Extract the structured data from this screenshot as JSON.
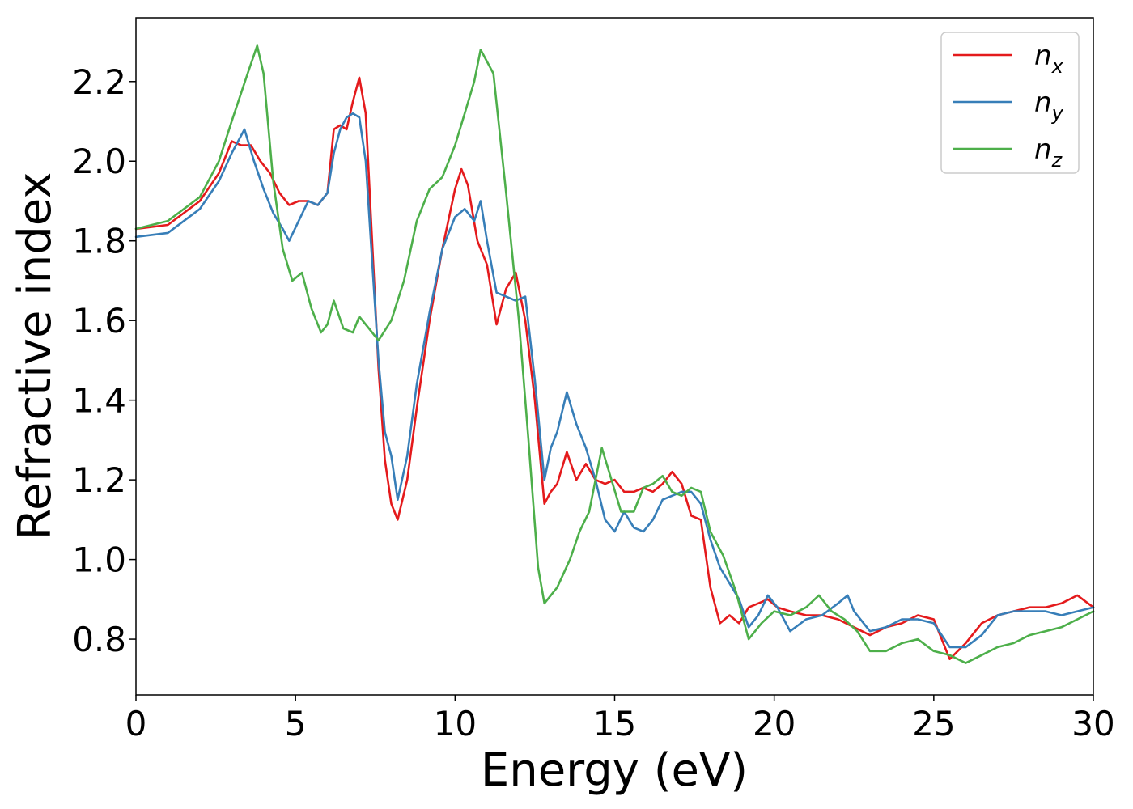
{
  "chart_data": {
    "type": "line",
    "title": "",
    "xlabel": "Energy (eV)",
    "ylabel": "Refractive index",
    "xlim": [
      0,
      30
    ],
    "ylim": [
      0.66,
      2.36
    ],
    "xticks": [
      0,
      5,
      10,
      15,
      20,
      25,
      30
    ],
    "xtick_labels": [
      "0",
      "5",
      "10",
      "15",
      "20",
      "25",
      "30"
    ],
    "yticks": [
      0.8,
      1.0,
      1.2,
      1.4,
      1.6,
      1.8,
      2.0,
      2.2
    ],
    "ytick_labels": [
      "0.8",
      "1.0",
      "1.2",
      "1.4",
      "1.6",
      "1.8",
      "2.0",
      "2.2"
    ],
    "grid": false,
    "legend_position": "top-right",
    "series": [
      {
        "name": "n",
        "subscript": "x",
        "color": "#e41a1c",
        "points": [
          [
            0,
            1.83
          ],
          [
            1,
            1.84
          ],
          [
            2,
            1.9
          ],
          [
            2.6,
            1.97
          ],
          [
            3.0,
            2.05
          ],
          [
            3.3,
            2.04
          ],
          [
            3.6,
            2.04
          ],
          [
            3.9,
            2.0
          ],
          [
            4.2,
            1.97
          ],
          [
            4.5,
            1.92
          ],
          [
            4.8,
            1.89
          ],
          [
            5.1,
            1.9
          ],
          [
            5.4,
            1.9
          ],
          [
            5.7,
            1.89
          ],
          [
            6.0,
            1.92
          ],
          [
            6.2,
            2.08
          ],
          [
            6.4,
            2.09
          ],
          [
            6.6,
            2.08
          ],
          [
            6.8,
            2.15
          ],
          [
            7.0,
            2.21
          ],
          [
            7.2,
            2.12
          ],
          [
            7.4,
            1.8
          ],
          [
            7.6,
            1.48
          ],
          [
            7.8,
            1.25
          ],
          [
            8.0,
            1.14
          ],
          [
            8.2,
            1.1
          ],
          [
            8.5,
            1.2
          ],
          [
            8.8,
            1.38
          ],
          [
            9.2,
            1.6
          ],
          [
            9.6,
            1.78
          ],
          [
            10.0,
            1.93
          ],
          [
            10.2,
            1.98
          ],
          [
            10.4,
            1.94
          ],
          [
            10.7,
            1.8
          ],
          [
            11.0,
            1.74
          ],
          [
            11.3,
            1.59
          ],
          [
            11.6,
            1.68
          ],
          [
            11.9,
            1.72
          ],
          [
            12.2,
            1.6
          ],
          [
            12.5,
            1.4
          ],
          [
            12.8,
            1.14
          ],
          [
            13.0,
            1.17
          ],
          [
            13.2,
            1.19
          ],
          [
            13.5,
            1.27
          ],
          [
            13.8,
            1.2
          ],
          [
            14.1,
            1.24
          ],
          [
            14.4,
            1.2
          ],
          [
            14.7,
            1.19
          ],
          [
            15.0,
            1.2
          ],
          [
            15.3,
            1.17
          ],
          [
            15.6,
            1.17
          ],
          [
            15.9,
            1.18
          ],
          [
            16.2,
            1.17
          ],
          [
            16.5,
            1.19
          ],
          [
            16.8,
            1.22
          ],
          [
            17.1,
            1.19
          ],
          [
            17.4,
            1.11
          ],
          [
            17.7,
            1.1
          ],
          [
            18.0,
            0.93
          ],
          [
            18.3,
            0.84
          ],
          [
            18.6,
            0.86
          ],
          [
            18.9,
            0.84
          ],
          [
            19.2,
            0.88
          ],
          [
            19.5,
            0.89
          ],
          [
            19.8,
            0.9
          ],
          [
            20.1,
            0.88
          ],
          [
            20.5,
            0.87
          ],
          [
            21.0,
            0.86
          ],
          [
            21.5,
            0.86
          ],
          [
            22.0,
            0.85
          ],
          [
            22.5,
            0.83
          ],
          [
            23.0,
            0.81
          ],
          [
            23.5,
            0.83
          ],
          [
            24.0,
            0.84
          ],
          [
            24.5,
            0.86
          ],
          [
            25.0,
            0.85
          ],
          [
            25.5,
            0.75
          ],
          [
            26.0,
            0.79
          ],
          [
            26.5,
            0.84
          ],
          [
            27.0,
            0.86
          ],
          [
            27.5,
            0.87
          ],
          [
            28.0,
            0.88
          ],
          [
            28.5,
            0.88
          ],
          [
            29.0,
            0.89
          ],
          [
            29.5,
            0.91
          ],
          [
            30,
            0.88
          ]
        ]
      },
      {
        "name": "n",
        "subscript": "y",
        "color": "#377eb8",
        "points": [
          [
            0,
            1.81
          ],
          [
            1,
            1.82
          ],
          [
            2,
            1.88
          ],
          [
            2.6,
            1.95
          ],
          [
            3.0,
            2.02
          ],
          [
            3.4,
            2.08
          ],
          [
            3.7,
            2.0
          ],
          [
            4.0,
            1.93
          ],
          [
            4.3,
            1.87
          ],
          [
            4.6,
            1.83
          ],
          [
            4.8,
            1.8
          ],
          [
            5.1,
            1.85
          ],
          [
            5.4,
            1.9
          ],
          [
            5.7,
            1.89
          ],
          [
            6.0,
            1.92
          ],
          [
            6.2,
            2.02
          ],
          [
            6.4,
            2.08
          ],
          [
            6.6,
            2.11
          ],
          [
            6.8,
            2.12
          ],
          [
            7.0,
            2.11
          ],
          [
            7.2,
            2.0
          ],
          [
            7.4,
            1.75
          ],
          [
            7.6,
            1.5
          ],
          [
            7.8,
            1.32
          ],
          [
            8.0,
            1.26
          ],
          [
            8.2,
            1.15
          ],
          [
            8.5,
            1.26
          ],
          [
            8.8,
            1.44
          ],
          [
            9.2,
            1.62
          ],
          [
            9.6,
            1.78
          ],
          [
            10.0,
            1.86
          ],
          [
            10.3,
            1.88
          ],
          [
            10.6,
            1.85
          ],
          [
            10.8,
            1.9
          ],
          [
            11.0,
            1.8
          ],
          [
            11.3,
            1.67
          ],
          [
            11.6,
            1.66
          ],
          [
            11.9,
            1.65
          ],
          [
            12.2,
            1.66
          ],
          [
            12.5,
            1.45
          ],
          [
            12.8,
            1.2
          ],
          [
            13.0,
            1.28
          ],
          [
            13.2,
            1.32
          ],
          [
            13.5,
            1.42
          ],
          [
            13.8,
            1.34
          ],
          [
            14.1,
            1.28
          ],
          [
            14.4,
            1.2
          ],
          [
            14.7,
            1.1
          ],
          [
            15.0,
            1.07
          ],
          [
            15.3,
            1.12
          ],
          [
            15.6,
            1.08
          ],
          [
            15.9,
            1.07
          ],
          [
            16.2,
            1.1
          ],
          [
            16.5,
            1.15
          ],
          [
            16.8,
            1.16
          ],
          [
            17.1,
            1.17
          ],
          [
            17.4,
            1.17
          ],
          [
            17.7,
            1.14
          ],
          [
            18.0,
            1.05
          ],
          [
            18.3,
            0.98
          ],
          [
            18.6,
            0.94
          ],
          [
            18.9,
            0.9
          ],
          [
            19.2,
            0.83
          ],
          [
            19.5,
            0.86
          ],
          [
            19.8,
            0.91
          ],
          [
            20.1,
            0.88
          ],
          [
            20.5,
            0.82
          ],
          [
            21.0,
            0.85
          ],
          [
            21.5,
            0.86
          ],
          [
            22.0,
            0.89
          ],
          [
            22.3,
            0.91
          ],
          [
            22.5,
            0.87
          ],
          [
            23.0,
            0.82
          ],
          [
            23.5,
            0.83
          ],
          [
            24.0,
            0.85
          ],
          [
            24.5,
            0.85
          ],
          [
            25.0,
            0.84
          ],
          [
            25.5,
            0.78
          ],
          [
            26.0,
            0.78
          ],
          [
            26.5,
            0.81
          ],
          [
            27.0,
            0.86
          ],
          [
            27.5,
            0.87
          ],
          [
            28.0,
            0.87
          ],
          [
            28.5,
            0.87
          ],
          [
            29.0,
            0.86
          ],
          [
            29.5,
            0.87
          ],
          [
            30,
            0.88
          ]
        ]
      },
      {
        "name": "n",
        "subscript": "z",
        "color": "#4daf4a",
        "points": [
          [
            0,
            1.83
          ],
          [
            1,
            1.85
          ],
          [
            2,
            1.91
          ],
          [
            2.6,
            2.0
          ],
          [
            3.0,
            2.1
          ],
          [
            3.5,
            2.22
          ],
          [
            3.8,
            2.29
          ],
          [
            4.0,
            2.22
          ],
          [
            4.3,
            1.95
          ],
          [
            4.6,
            1.78
          ],
          [
            4.9,
            1.7
          ],
          [
            5.2,
            1.72
          ],
          [
            5.5,
            1.63
          ],
          [
            5.8,
            1.57
          ],
          [
            6.0,
            1.59
          ],
          [
            6.2,
            1.65
          ],
          [
            6.5,
            1.58
          ],
          [
            6.8,
            1.57
          ],
          [
            7.0,
            1.61
          ],
          [
            7.3,
            1.58
          ],
          [
            7.6,
            1.55
          ],
          [
            8.0,
            1.6
          ],
          [
            8.4,
            1.7
          ],
          [
            8.8,
            1.85
          ],
          [
            9.2,
            1.93
          ],
          [
            9.6,
            1.96
          ],
          [
            10.0,
            2.04
          ],
          [
            10.3,
            2.12
          ],
          [
            10.6,
            2.2
          ],
          [
            10.8,
            2.28
          ],
          [
            11.2,
            2.22
          ],
          [
            11.6,
            1.92
          ],
          [
            12.0,
            1.6
          ],
          [
            12.3,
            1.3
          ],
          [
            12.6,
            0.98
          ],
          [
            12.8,
            0.89
          ],
          [
            13.2,
            0.93
          ],
          [
            13.6,
            1.0
          ],
          [
            13.9,
            1.07
          ],
          [
            14.2,
            1.12
          ],
          [
            14.6,
            1.28
          ],
          [
            14.9,
            1.2
          ],
          [
            15.2,
            1.12
          ],
          [
            15.6,
            1.12
          ],
          [
            15.9,
            1.18
          ],
          [
            16.2,
            1.19
          ],
          [
            16.5,
            1.21
          ],
          [
            16.8,
            1.17
          ],
          [
            17.1,
            1.16
          ],
          [
            17.4,
            1.18
          ],
          [
            17.7,
            1.17
          ],
          [
            18.0,
            1.07
          ],
          [
            18.4,
            1.01
          ],
          [
            18.8,
            0.92
          ],
          [
            19.2,
            0.8
          ],
          [
            19.6,
            0.84
          ],
          [
            20.0,
            0.87
          ],
          [
            20.5,
            0.86
          ],
          [
            21.0,
            0.88
          ],
          [
            21.4,
            0.91
          ],
          [
            21.8,
            0.87
          ],
          [
            22.2,
            0.85
          ],
          [
            22.6,
            0.82
          ],
          [
            23.0,
            0.77
          ],
          [
            23.5,
            0.77
          ],
          [
            24.0,
            0.79
          ],
          [
            24.5,
            0.8
          ],
          [
            25.0,
            0.77
          ],
          [
            25.5,
            0.76
          ],
          [
            26.0,
            0.74
          ],
          [
            26.5,
            0.76
          ],
          [
            27.0,
            0.78
          ],
          [
            27.5,
            0.79
          ],
          [
            28.0,
            0.81
          ],
          [
            28.5,
            0.82
          ],
          [
            29.0,
            0.83
          ],
          [
            29.5,
            0.85
          ],
          [
            30,
            0.87
          ]
        ]
      }
    ]
  }
}
